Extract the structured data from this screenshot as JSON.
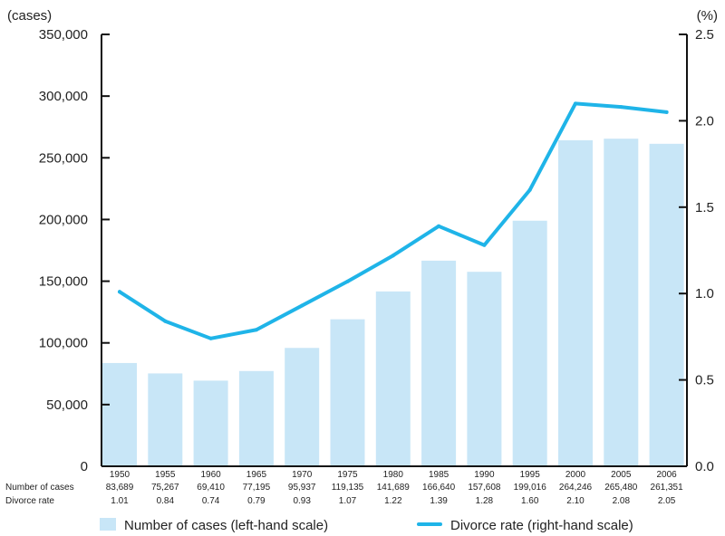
{
  "chart_data": {
    "type": "bar+line",
    "categories": [
      "1950",
      "1955",
      "1960",
      "1965",
      "1970",
      "1975",
      "1980",
      "1985",
      "1990",
      "1995",
      "2000",
      "2005",
      "2006"
    ],
    "series": [
      {
        "name": "Number of cases",
        "type": "bar",
        "axis": "left",
        "values": [
          83689,
          75267,
          69410,
          77195,
          95937,
          119135,
          141689,
          166640,
          157608,
          199016,
          264246,
          265480,
          261351
        ],
        "labels": [
          "83,689",
          "75,267",
          "69,410",
          "77,195",
          "95,937",
          "119,135",
          "141,689",
          "166,640",
          "157,608",
          "199,016",
          "264,246",
          "265,480",
          "261,351"
        ]
      },
      {
        "name": "Divorce rate",
        "type": "line",
        "axis": "right",
        "values": [
          1.01,
          0.84,
          0.74,
          0.79,
          0.93,
          1.07,
          1.22,
          1.39,
          1.28,
          1.6,
          2.1,
          2.08,
          2.05
        ],
        "labels": [
          "1.01",
          "0.84",
          "0.74",
          "0.79",
          "0.93",
          "1.07",
          "1.22",
          "1.39",
          "1.28",
          "1.60",
          "2.10",
          "2.08",
          "2.05"
        ]
      }
    ],
    "row_labels": {
      "cases": "Number of cases",
      "rate": "Divorce rate"
    },
    "y_left": {
      "unit": "(cases)",
      "range": [
        0,
        350000
      ],
      "ticks": [
        0,
        50000,
        100000,
        150000,
        200000,
        250000,
        300000,
        350000
      ],
      "tick_labels": [
        "0",
        "50,000",
        "100,000",
        "150,000",
        "200,000",
        "250,000",
        "300,000",
        "350,000"
      ]
    },
    "y_right": {
      "unit": "(%)",
      "range": [
        0,
        2.5
      ],
      "ticks": [
        0,
        0.5,
        1.0,
        1.5,
        2.0,
        2.5
      ],
      "tick_labels": [
        "0.0",
        "0.5",
        "1.0",
        "1.5",
        "2.0",
        "2.5"
      ]
    },
    "legend": {
      "position": "bottom",
      "items": [
        {
          "label": "Number of cases  (left-hand scale)",
          "kind": "bar"
        },
        {
          "label": "Divorce rate (right-hand scale)",
          "kind": "line"
        }
      ]
    },
    "grid": false,
    "colors": {
      "bar": "#c8e6f7",
      "line": "#1fb4e8",
      "axis": "#111111"
    }
  }
}
